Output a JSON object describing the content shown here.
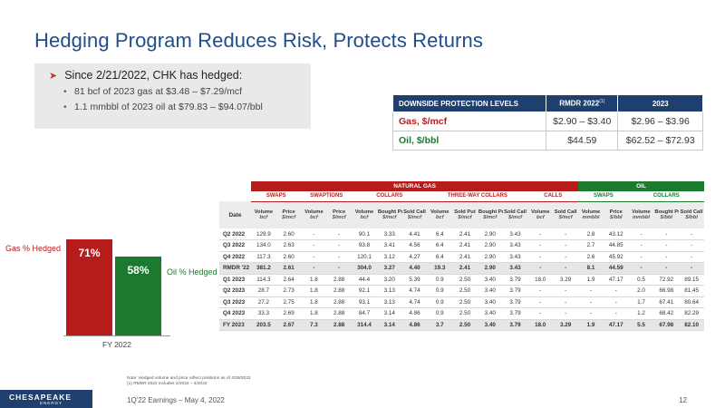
{
  "slide": {
    "title": "Hedging Program Reduces Risk, Protects Returns",
    "page_number": "12",
    "footer": "1Q'22 Earnings – May 4, 2022",
    "logo_text": "CHESAPEAKE",
    "logo_subtext": "ENERGY",
    "note_lines": [
      "Note: Hedged volume and price reflect positions as of 4/29/2022",
      "(1) RMDR 2022 includes 2/2022 – 4/2022"
    ]
  },
  "callout": {
    "headline": "Since 2/21/2022, CHK has hedged:",
    "bullets": [
      "81 bcf of 2023 gas at $3.48 – $7.29/mcf",
      "1.1 mmbbl of 2023 oil at $79.83 – $94.07/bbl"
    ]
  },
  "downside_protection": {
    "headers": [
      "DOWNSIDE PROTECTION LEVELS",
      "RMDR 2022",
      "2023"
    ],
    "header_footnote": "(1)",
    "rows": [
      {
        "label": "Gas, $/mcf",
        "rmdr": "$2.90 – $3.40",
        "y2023": "$2.96 – $3.96"
      },
      {
        "label": "Oil, $/bbl",
        "rmdr": "$44.59",
        "y2023": "$62.52 – $72.93"
      }
    ]
  },
  "chart_data": {
    "type": "bar",
    "categories": [
      "FY 2022"
    ],
    "series": [
      {
        "name": "Gas % Hedged",
        "values": [
          71
        ],
        "label": "71%",
        "color": "#b71c1c"
      },
      {
        "name": "Oil % Hedged",
        "values": [
          58
        ],
        "label": "58%",
        "color": "#1b7a2e"
      }
    ],
    "xlabel": "FY 2022",
    "ylim": [
      0,
      100
    ]
  },
  "hedge_table": {
    "group_natural_gas": "NATURAL GAS",
    "group_oil": "OIL",
    "subgroups": [
      "SWAPS",
      "SWAPTIONS",
      "COLLARS",
      "THREE-WAY COLLARS",
      "CALLS",
      "SWAPS",
      "COLLARS"
    ],
    "date_header": "Date",
    "columns": [
      {
        "t": "Volume",
        "u": "bcf"
      },
      {
        "t": "Price",
        "u": "$/mcf"
      },
      {
        "t": "Volume",
        "u": "bcf"
      },
      {
        "t": "Price",
        "u": "$/mcf"
      },
      {
        "t": "Volume",
        "u": "bcf"
      },
      {
        "t": "Bought Put",
        "u": "$/mcf"
      },
      {
        "t": "Sold Call",
        "u": "$/mcf"
      },
      {
        "t": "Volume",
        "u": "bcf"
      },
      {
        "t": "Sold Put",
        "u": "$/mcf"
      },
      {
        "t": "Bought Put",
        "u": "$/mcf"
      },
      {
        "t": "Sold Call",
        "u": "$/mcf"
      },
      {
        "t": "Volume",
        "u": "bcf"
      },
      {
        "t": "Sold Call",
        "u": "$/mcf"
      },
      {
        "t": "Volume",
        "u": "mmbbl"
      },
      {
        "t": "Price",
        "u": "$/bbl"
      },
      {
        "t": "Volume",
        "u": "mmbbl"
      },
      {
        "t": "Bought Put",
        "u": "$/bbl"
      },
      {
        "t": "Sold Call",
        "u": "$/bbl"
      }
    ],
    "rows": [
      {
        "date": "Q2 2022",
        "total": false,
        "cells": [
          "129.9",
          "2.60",
          "-",
          "-",
          "90.1",
          "3.33",
          "4.41",
          "6.4",
          "2.41",
          "2.90",
          "3.43",
          "-",
          "-",
          "2.8",
          "43.12",
          "-",
          "-",
          "-"
        ]
      },
      {
        "date": "Q3 2022",
        "total": false,
        "cells": [
          "134.0",
          "2.63",
          "-",
          "-",
          "93.8",
          "3.41",
          "4.56",
          "6.4",
          "2.41",
          "2.90",
          "3.43",
          "-",
          "-",
          "2.7",
          "44.85",
          "-",
          "-",
          "-"
        ]
      },
      {
        "date": "Q4 2022",
        "total": false,
        "cells": [
          "117.3",
          "2.60",
          "-",
          "-",
          "120.1",
          "3.12",
          "4.27",
          "6.4",
          "2.41",
          "2.90",
          "3.43",
          "-",
          "-",
          "2.6",
          "45.92",
          "-",
          "-",
          "-"
        ]
      },
      {
        "date": "RMDR '22",
        "total": true,
        "cells": [
          "381.2",
          "2.61",
          "-",
          "-",
          "304.0",
          "3.27",
          "4.40",
          "19.3",
          "2.41",
          "2.90",
          "3.43",
          "-",
          "-",
          "8.1",
          "44.59",
          "-",
          "-",
          "-"
        ]
      },
      {
        "date": "Q1 2023",
        "total": false,
        "cells": [
          "114.3",
          "2.64",
          "1.8",
          "2.88",
          "44.4",
          "3.20",
          "5.39",
          "0.9",
          "2.50",
          "3.40",
          "3.79",
          "18.0",
          "3.29",
          "1.9",
          "47.17",
          "0.5",
          "72.92",
          "89.15"
        ]
      },
      {
        "date": "Q2 2023",
        "total": false,
        "cells": [
          "28.7",
          "2.73",
          "1.8",
          "2.88",
          "92.1",
          "3.13",
          "4.74",
          "0.9",
          "2.50",
          "3.40",
          "3.79",
          "-",
          "-",
          "-",
          "-",
          "2.0",
          "66.98",
          "81.45"
        ]
      },
      {
        "date": "Q3 2023",
        "total": false,
        "cells": [
          "27.2",
          "2.75",
          "1.8",
          "2.88",
          "93.1",
          "3.13",
          "4.74",
          "0.9",
          "2.50",
          "3.40",
          "3.79",
          "-",
          "-",
          "-",
          "-",
          "1.7",
          "67.41",
          "80.64"
        ]
      },
      {
        "date": "Q4 2023",
        "total": false,
        "cells": [
          "33.3",
          "2.69",
          "1.8",
          "2.88",
          "84.7",
          "3.14",
          "4.86",
          "0.9",
          "2.50",
          "3.40",
          "3.79",
          "-",
          "-",
          "-",
          "-",
          "1.2",
          "68.42",
          "82.29"
        ]
      },
      {
        "date": "FY 2023",
        "total": true,
        "cells": [
          "203.5",
          "2.67",
          "7.3",
          "2.88",
          "314.4",
          "3.14",
          "4.86",
          "3.7",
          "2.50",
          "3.40",
          "3.79",
          "18.0",
          "3.29",
          "1.9",
          "47.17",
          "5.5",
          "67.98",
          "82.10"
        ]
      }
    ]
  }
}
